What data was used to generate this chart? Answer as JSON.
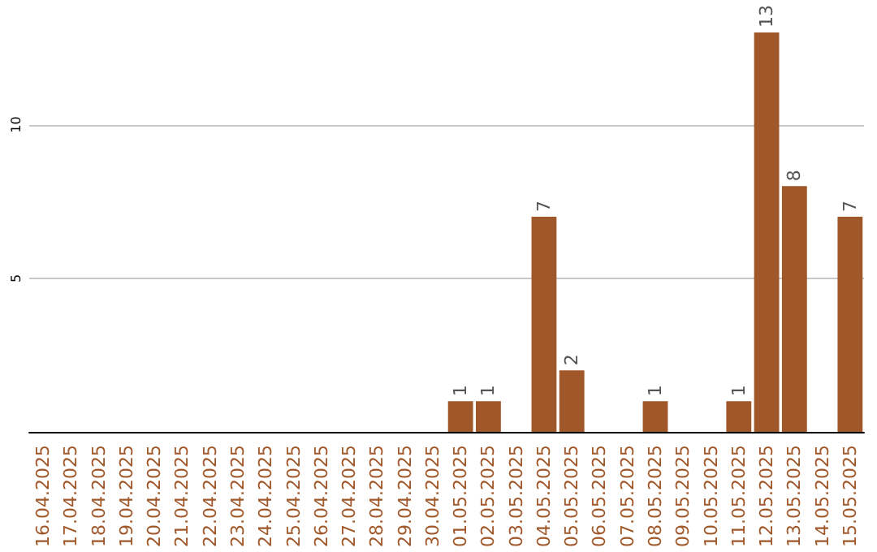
{
  "chart_data": {
    "type": "bar",
    "categories": [
      "16.04.2025",
      "17.04.2025",
      "18.04.2025",
      "19.04.2025",
      "20.04.2025",
      "21.04.2025",
      "22.04.2025",
      "23.04.2025",
      "24.04.2025",
      "25.04.2025",
      "26.04.2025",
      "27.04.2025",
      "28.04.2025",
      "29.04.2025",
      "30.04.2025",
      "01.05.2025",
      "02.05.2025",
      "03.05.2025",
      "04.05.2025",
      "05.05.2025",
      "06.05.2025",
      "07.05.2025",
      "08.05.2025",
      "09.05.2025",
      "10.05.2025",
      "11.05.2025",
      "12.05.2025",
      "13.05.2025",
      "14.05.2025",
      "15.05.2025"
    ],
    "values": [
      0,
      0,
      0,
      0,
      0,
      0,
      0,
      0,
      0,
      0,
      0,
      0,
      0,
      0,
      0,
      1,
      1,
      0,
      7,
      2,
      0,
      0,
      1,
      0,
      0,
      1,
      13,
      8,
      0,
      7
    ],
    "value_labels": [
      null,
      null,
      null,
      null,
      null,
      null,
      null,
      null,
      null,
      null,
      null,
      null,
      null,
      null,
      null,
      "1",
      "1",
      null,
      "7",
      "2",
      null,
      null,
      "1",
      null,
      null,
      "1",
      "13",
      "8",
      null,
      "7"
    ],
    "color": "#a0582a",
    "ylim": [
      0,
      13
    ],
    "yticks": [
      5,
      10
    ],
    "grid": "y"
  }
}
